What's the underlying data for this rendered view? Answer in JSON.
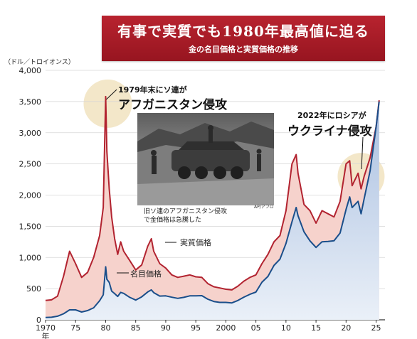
{
  "banner": {
    "title": "有事で実質でも1980年最高値に迫る",
    "subtitle": "金の名目価格と実質価格の推移"
  },
  "unit_label": "（ドル／トロイオンス）",
  "annotations": {
    "event_1979_line1": "1979年末にソ連が",
    "event_1979_line2": "アフガニスタン侵攻",
    "event_2022_line1": "2022年にロシアが",
    "event_2022_line2": "ウクライナ侵攻"
  },
  "photo": {
    "caption_line1": "旧ソ連のアフガニスタン侵攻",
    "caption_line2": "で金価格は急騰した",
    "credit": "AP/アフロ"
  },
  "colors": {
    "real_line": "#b22330",
    "real_fill": "#f6d2cc",
    "nominal_line": "#1a4e8a",
    "nominal_fill": "#c7d5ea",
    "highlight": "#f1e3bf",
    "banner": "#a8202b"
  },
  "chart_data": {
    "type": "line",
    "title": "",
    "xlabel": "",
    "ylabel": "（ドル／トロイオンス）",
    "xlim": [
      1970,
      2026
    ],
    "ylim": [
      0,
      4000
    ],
    "grid": true,
    "x_tick_values": [
      1970,
      1975,
      1980,
      1985,
      1990,
      1995,
      2000,
      2005,
      2010,
      2015,
      2020,
      2025
    ],
    "x_tick_labels": [
      "1970",
      "75",
      "80",
      "85",
      "90",
      "95",
      "2000",
      "05",
      "10",
      "15",
      "20",
      "25"
    ],
    "x_tick_suffix": "年",
    "y_tick_values": [
      0,
      500,
      1000,
      1500,
      2000,
      2500,
      3000,
      3500,
      4000
    ],
    "y_tick_labels": [
      "0",
      "500",
      "1,000",
      "1,500",
      "2,000",
      "2,500",
      "3,000",
      "3,500",
      "4,000"
    ],
    "series": [
      {
        "name": "実質価格",
        "points": [
          [
            1970,
            310
          ],
          [
            1971,
            320
          ],
          [
            1972,
            380
          ],
          [
            1973,
            700
          ],
          [
            1974,
            1100
          ],
          [
            1975,
            900
          ],
          [
            1976,
            680
          ],
          [
            1977,
            760
          ],
          [
            1978,
            1000
          ],
          [
            1979,
            1350
          ],
          [
            1979.6,
            1800
          ],
          [
            1980.0,
            3580
          ],
          [
            1980.2,
            2700
          ],
          [
            1980.6,
            2100
          ],
          [
            1981,
            1650
          ],
          [
            1981.5,
            1300
          ],
          [
            1982,
            1050
          ],
          [
            1982.5,
            1250
          ],
          [
            1983,
            1100
          ],
          [
            1984,
            950
          ],
          [
            1985,
            800
          ],
          [
            1986,
            880
          ],
          [
            1987,
            1180
          ],
          [
            1987.6,
            1300
          ],
          [
            1988,
            1100
          ],
          [
            1989,
            900
          ],
          [
            1990,
            830
          ],
          [
            1991,
            720
          ],
          [
            1992,
            680
          ],
          [
            1993,
            700
          ],
          [
            1994,
            720
          ],
          [
            1995,
            690
          ],
          [
            1996,
            680
          ],
          [
            1997,
            580
          ],
          [
            1998,
            530
          ],
          [
            1999,
            510
          ],
          [
            2000,
            490
          ],
          [
            2001,
            480
          ],
          [
            2002,
            540
          ],
          [
            2003,
            620
          ],
          [
            2004,
            680
          ],
          [
            2005,
            720
          ],
          [
            2006,
            900
          ],
          [
            2007,
            1050
          ],
          [
            2008,
            1250
          ],
          [
            2009,
            1350
          ],
          [
            2010,
            1750
          ],
          [
            2011,
            2500
          ],
          [
            2011.7,
            2650
          ],
          [
            2012,
            2350
          ],
          [
            2013,
            1850
          ],
          [
            2014,
            1750
          ],
          [
            2015,
            1550
          ],
          [
            2016,
            1750
          ],
          [
            2017,
            1700
          ],
          [
            2018,
            1650
          ],
          [
            2019,
            1900
          ],
          [
            2020,
            2500
          ],
          [
            2020.6,
            2550
          ],
          [
            2021,
            2150
          ],
          [
            2022,
            2350
          ],
          [
            2022.5,
            2100
          ],
          [
            2023,
            2300
          ],
          [
            2024,
            2600
          ],
          [
            2025,
            3100
          ],
          [
            2025.5,
            3520
          ]
        ]
      },
      {
        "name": "名目価格",
        "points": [
          [
            1970,
            36
          ],
          [
            1971,
            41
          ],
          [
            1972,
            58
          ],
          [
            1973,
            97
          ],
          [
            1974,
            160
          ],
          [
            1975,
            160
          ],
          [
            1976,
            125
          ],
          [
            1977,
            148
          ],
          [
            1978,
            193
          ],
          [
            1979,
            306
          ],
          [
            1979.6,
            400
          ],
          [
            1980.0,
            850
          ],
          [
            1980.2,
            650
          ],
          [
            1980.6,
            600
          ],
          [
            1981,
            460
          ],
          [
            1981.5,
            420
          ],
          [
            1982,
            375
          ],
          [
            1982.5,
            440
          ],
          [
            1983,
            424
          ],
          [
            1984,
            360
          ],
          [
            1985,
            317
          ],
          [
            1986,
            368
          ],
          [
            1987,
            447
          ],
          [
            1987.6,
            480
          ],
          [
            1988,
            437
          ],
          [
            1989,
            381
          ],
          [
            1990,
            384
          ],
          [
            1991,
            362
          ],
          [
            1992,
            344
          ],
          [
            1993,
            360
          ],
          [
            1994,
            384
          ],
          [
            1995,
            384
          ],
          [
            1996,
            388
          ],
          [
            1997,
            331
          ],
          [
            1998,
            294
          ],
          [
            1999,
            279
          ],
          [
            2000,
            279
          ],
          [
            2001,
            271
          ],
          [
            2002,
            310
          ],
          [
            2003,
            363
          ],
          [
            2004,
            409
          ],
          [
            2005,
            444
          ],
          [
            2006,
            603
          ],
          [
            2007,
            695
          ],
          [
            2008,
            872
          ],
          [
            2009,
            972
          ],
          [
            2010,
            1225
          ],
          [
            2011,
            1572
          ],
          [
            2011.7,
            1800
          ],
          [
            2012,
            1669
          ],
          [
            2013,
            1411
          ],
          [
            2014,
            1266
          ],
          [
            2015,
            1160
          ],
          [
            2016,
            1251
          ],
          [
            2017,
            1257
          ],
          [
            2018,
            1268
          ],
          [
            2019,
            1392
          ],
          [
            2020,
            1770
          ],
          [
            2020.6,
            1970
          ],
          [
            2021,
            1800
          ],
          [
            2022,
            1900
          ],
          [
            2022.5,
            1700
          ],
          [
            2023,
            1940
          ],
          [
            2024,
            2390
          ],
          [
            2025,
            3100
          ],
          [
            2025.5,
            3500
          ]
        ]
      }
    ]
  }
}
